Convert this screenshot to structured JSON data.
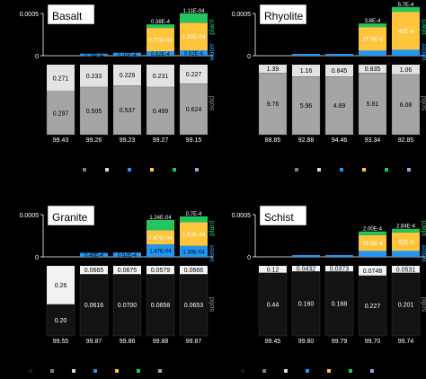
{
  "chart_data": [
    {
      "type": "bar",
      "title": "Basalt",
      "ylim": [
        0,
        0.0005
      ],
      "ytick_labels": [
        "0.0005",
        "0"
      ],
      "side_labels": {
        "water": "water",
        "plant": "plant",
        "solid": "solid"
      },
      "columns": [
        {
          "total": "99.43",
          "water": 0.0,
          "water_label": "",
          "ex": 0.0,
          "ex_label": "",
          "plant": 0.0,
          "plant_label": "",
          "solid_top": "0.271",
          "solid_top_frac": 0.38,
          "solid_bottom": "0.297"
        },
        {
          "total": "99.26",
          "water": 2.4e-05,
          "water_label": "0.24E-4",
          "ex": 0.0,
          "ex_label": "",
          "plant": 0.0,
          "plant_label": "",
          "solid_top": "0.233",
          "solid_top_frac": 0.32,
          "solid_bottom": "0.505"
        },
        {
          "total": "99.23",
          "water": 3.5e-05,
          "water_label": "0.35E-4",
          "ex": 0.0,
          "ex_label": "",
          "plant": 0.0,
          "plant_label": "",
          "solid_top": "0.229",
          "solid_top_frac": 0.3,
          "solid_bottom": "0.537"
        },
        {
          "total": "99.27",
          "water": 5.2e-05,
          "water_label": "0.52E-4",
          "ex": 0.000277,
          "ex_label": "2.77E-04",
          "plant": 3.8e-05,
          "plant_label": "0.38E-4",
          "solid_top": "0.231",
          "solid_top_frac": 0.32,
          "solid_bottom": "0.499"
        },
        {
          "total": "99.15",
          "water": 6.2e-05,
          "water_label": "0.62E-4",
          "ex": 0.000329,
          "ex_label": "3.29E-04",
          "plant": 0.000111,
          "plant_label": "1.11E-04",
          "solid_top": "0.227",
          "solid_top_frac": 0.27,
          "solid_bottom": "0.624"
        }
      ]
    },
    {
      "type": "bar",
      "title": "Rhyolite",
      "ylim": [
        0,
        0.0005
      ],
      "ytick_labels": [
        "0.0005",
        "0"
      ],
      "side_labels": {
        "water": "water",
        "plant": "plant",
        "solid": "solid"
      },
      "columns": [
        {
          "total": "88.85",
          "water": 0.0,
          "water_label": "",
          "ex": 0.0,
          "ex_label": "",
          "plant": 0.0,
          "plant_label": "",
          "solid_top": "1.39",
          "solid_top_frac": 0.12,
          "solid_bottom": "9.76"
        },
        {
          "total": "92.88",
          "water": 2e-05,
          "water_label": "",
          "ex": 0.0,
          "ex_label": "",
          "plant": 0.0,
          "plant_label": "",
          "solid_top": "1.16",
          "solid_top_frac": 0.17,
          "solid_bottom": "5.96"
        },
        {
          "total": "94.46",
          "water": 2e-05,
          "water_label": "",
          "ex": 0.0,
          "ex_label": "",
          "plant": 0.0,
          "plant_label": "",
          "solid_top": "0.845",
          "solid_top_frac": 0.17,
          "solid_bottom": "4.69"
        },
        {
          "total": "93.34",
          "water": 6e-05,
          "water_label": "",
          "ex": 0.000279,
          "ex_label": "27.9E-4",
          "plant": 3.8e-05,
          "plant_label": "3.8E-4",
          "solid_top": "0.835",
          "solid_top_frac": 0.12,
          "solid_bottom": "5.81"
        },
        {
          "total": "92.85",
          "water": 7e-05,
          "water_label": "",
          "ex": 0.00045,
          "ex_label": "45E-4",
          "plant": 5.7e-05,
          "plant_label": "5.7E-4",
          "solid_top": "1.06",
          "solid_top_frac": 0.14,
          "solid_bottom": "6.08"
        }
      ]
    },
    {
      "type": "bar",
      "title": "Granite",
      "ylim": [
        0,
        0.0005
      ],
      "ytick_labels": [
        "0.0005",
        "0"
      ],
      "side_labels": {
        "water": "water",
        "plant": "plant",
        "solid": "solid"
      },
      "columns": [
        {
          "total": "99.55",
          "water": 0.0,
          "water_label": "",
          "ex": 0.0,
          "ex_label": "",
          "plant": 0.0,
          "plant_label": "",
          "solid_top": "0.26",
          "solid_top_frac": 0.55,
          "solid_bottom": "0.20"
        },
        {
          "total": "99.87",
          "water": 4.8e-05,
          "water_label": "0.48E-4",
          "ex": 0.0,
          "ex_label": "",
          "plant": 0.0,
          "plant_label": "",
          "solid_top": "0.0665",
          "solid_top_frac": 0.12,
          "solid_bottom": "0.0616"
        },
        {
          "total": "99.86",
          "water": 5.2e-05,
          "water_label": "0.52E-4",
          "ex": 0.0,
          "ex_label": "",
          "plant": 0.0,
          "plant_label": "",
          "solid_top": "0.0675",
          "solid_top_frac": 0.12,
          "solid_bottom": "0.0700"
        },
        {
          "total": "99.88",
          "water": 0.000147,
          "water_label": "1.47E-04",
          "ex": 0.000167,
          "ex_label": "1.67E-04",
          "plant": 0.000124,
          "plant_label": "1.24E-04",
          "solid_top": "0.0579",
          "solid_top_frac": 0.12,
          "solid_bottom": "0.0658"
        },
        {
          "total": "99.87",
          "water": 0.00013,
          "water_label": "1.30E-04",
          "ex": 0.00028,
          "ex_label": "2.80E-04",
          "plant": 7e-05,
          "plant_label": "0.7E-4",
          "solid_top": "0.0666",
          "solid_top_frac": 0.12,
          "solid_bottom": "0.0653"
        }
      ]
    },
    {
      "type": "bar",
      "title": "Schist",
      "ylim": [
        0,
        0.0005
      ],
      "ytick_labels": [
        "0.0005",
        "0"
      ],
      "side_labels": {
        "water": "water",
        "plant": "plant",
        "solid": "solid"
      },
      "columns": [
        {
          "total": "99.45",
          "water": 0.0,
          "water_label": "",
          "ex": 0.0,
          "ex_label": "",
          "plant": 0.0,
          "plant_label": "",
          "solid_top": "0.12",
          "solid_top_frac": 0.1,
          "solid_bottom": "0.44"
        },
        {
          "total": "99.80",
          "water": 2e-05,
          "water_label": "",
          "ex": 0.0,
          "ex_label": "",
          "plant": 0.0,
          "plant_label": "",
          "solid_top": "0.0432",
          "solid_top_frac": 0.08,
          "solid_bottom": "0.160"
        },
        {
          "total": "99.79",
          "water": 2e-05,
          "water_label": "",
          "ex": 0.0,
          "ex_label": "",
          "plant": 0.0,
          "plant_label": "",
          "solid_top": "0.0373",
          "solid_top_frac": 0.08,
          "solid_bottom": "0.168"
        },
        {
          "total": "99.70",
          "water": 7e-05,
          "water_label": "",
          "ex": 0.000188,
          "ex_label": "18.8E-4",
          "plant": 2e-05,
          "plant_label": "2.00E-4",
          "solid_top": "0.0748",
          "solid_top_frac": 0.14,
          "solid_bottom": "0.227"
        },
        {
          "total": "99.74",
          "water": 7e-05,
          "water_label": "",
          "ex": 0.00022,
          "ex_label": "22E-4",
          "plant": 2.8e-05,
          "plant_label": "2.84E-4",
          "solid_top": "0.0531",
          "solid_top_frac": 0.1,
          "solid_bottom": "0.201"
        }
      ]
    }
  ],
  "colors": {
    "background": "#000000",
    "panel": "#111111",
    "water": "#2196f3",
    "ex": "#ffc53d",
    "plant": "#22c55e",
    "solid_top_light": "#e3e3e3",
    "solid_bottom_light": "#a5a5a5",
    "solid_top_dark": "#f2f2f2",
    "solid_bottom_dark": "#131313",
    "axis": "#ffffff",
    "legend": [
      "#7f7f7f",
      "#d9d9d9",
      "#2196f3",
      "#ffc53d",
      "#22c55e",
      "#8ea9db"
    ]
  }
}
